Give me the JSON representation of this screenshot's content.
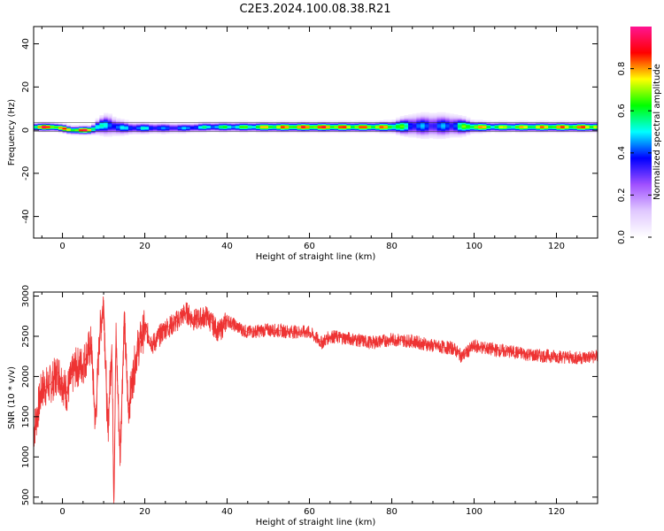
{
  "title": "C2E3.2024.100.08.38.R21",
  "chart_data": [
    {
      "type": "heatmap",
      "xlabel": "Height of straight line (km)",
      "ylabel": "Frequency (Hz)",
      "xlim": [
        -7,
        130
      ],
      "ylim": [
        -50,
        48
      ],
      "x_ticks": [
        0,
        20,
        40,
        60,
        80,
        100,
        120
      ],
      "y_ticks": [
        -40,
        -20,
        0,
        20,
        40
      ],
      "colorbar": {
        "label": "Normalized spectral amplitude",
        "range": [
          0,
          1
        ],
        "ticks": [
          0.0,
          0.2,
          0.4,
          0.6,
          0.8
        ],
        "colors": [
          "#ffffff",
          "#e0c8ff",
          "#a050ff",
          "#0000ff",
          "#00ffff",
          "#00ff00",
          "#ffff00",
          "#ff0000",
          "#ff1493"
        ]
      },
      "band": [
        {
          "x": -7,
          "y": 1.5,
          "amp": 0.8,
          "width": 3.0
        },
        {
          "x": -5,
          "y": 1.5,
          "amp": 1.0,
          "width": 3.0
        },
        {
          "x": -2,
          "y": 1.5,
          "amp": 0.95,
          "width": 3.0
        },
        {
          "x": 0,
          "y": 1.0,
          "amp": 0.9,
          "width": 3.0
        },
        {
          "x": 2,
          "y": 0.0,
          "amp": 0.85,
          "width": 3.0
        },
        {
          "x": 5,
          "y": 0.0,
          "amp": 1.0,
          "width": 3.0
        },
        {
          "x": 7,
          "y": 0.0,
          "amp": 0.9,
          "width": 3.0
        },
        {
          "x": 9,
          "y": 2.0,
          "amp": 0.6,
          "width": 6.0
        },
        {
          "x": 11,
          "y": 2.5,
          "amp": 0.5,
          "width": 8.0
        },
        {
          "x": 13,
          "y": 1.5,
          "amp": 0.55,
          "width": 6.0
        },
        {
          "x": 16,
          "y": 1.0,
          "amp": 0.5,
          "width": 4.5
        },
        {
          "x": 20,
          "y": 1.0,
          "amp": 0.55,
          "width": 4.0
        },
        {
          "x": 25,
          "y": 1.0,
          "amp": 0.45,
          "width": 4.0
        },
        {
          "x": 30,
          "y": 1.0,
          "amp": 0.5,
          "width": 3.5
        },
        {
          "x": 35,
          "y": 1.5,
          "amp": 0.6,
          "width": 3.5
        },
        {
          "x": 40,
          "y": 1.5,
          "amp": 0.65,
          "width": 3.5
        },
        {
          "x": 45,
          "y": 1.5,
          "amp": 0.7,
          "width": 3.5
        },
        {
          "x": 50,
          "y": 1.5,
          "amp": 0.85,
          "width": 3.5
        },
        {
          "x": 55,
          "y": 1.5,
          "amp": 0.9,
          "width": 3.5
        },
        {
          "x": 60,
          "y": 1.5,
          "amp": 0.95,
          "width": 3.5
        },
        {
          "x": 65,
          "y": 1.5,
          "amp": 0.95,
          "width": 3.5
        },
        {
          "x": 70,
          "y": 1.5,
          "amp": 0.9,
          "width": 3.5
        },
        {
          "x": 75,
          "y": 1.5,
          "amp": 0.9,
          "width": 3.5
        },
        {
          "x": 80,
          "y": 1.5,
          "amp": 0.85,
          "width": 4.0
        },
        {
          "x": 85,
          "y": 2.0,
          "amp": 0.5,
          "width": 8.0
        },
        {
          "x": 90,
          "y": 2.0,
          "amp": 0.45,
          "width": 9.0
        },
        {
          "x": 95,
          "y": 2.0,
          "amp": 0.5,
          "width": 8.0
        },
        {
          "x": 100,
          "y": 1.5,
          "amp": 0.9,
          "width": 4.0
        },
        {
          "x": 105,
          "y": 1.5,
          "amp": 0.75,
          "width": 3.5
        },
        {
          "x": 110,
          "y": 1.5,
          "amp": 0.8,
          "width": 3.5
        },
        {
          "x": 115,
          "y": 1.5,
          "amp": 0.85,
          "width": 3.5
        },
        {
          "x": 120,
          "y": 1.5,
          "amp": 0.9,
          "width": 3.5
        },
        {
          "x": 125,
          "y": 1.5,
          "amp": 0.9,
          "width": 3.5
        },
        {
          "x": 130,
          "y": 1.5,
          "amp": 0.95,
          "width": 3.5
        }
      ]
    },
    {
      "type": "line",
      "xlabel": "Height of straight line (km)",
      "ylabel": "SNR (10 * v/v)",
      "xlim": [
        -7,
        130
      ],
      "ylim": [
        420,
        3050
      ],
      "x_ticks": [
        0,
        20,
        40,
        60,
        80,
        100,
        120
      ],
      "y_ticks": [
        500,
        1000,
        1500,
        2000,
        2500,
        3000
      ],
      "line_color": "#ee3333",
      "series": [
        {
          "x": [
            -7,
            -5,
            -3,
            -1,
            1,
            3,
            5,
            7,
            8,
            9,
            10,
            11,
            12,
            12.5,
            13,
            14,
            15,
            16,
            18,
            20,
            22,
            25,
            27,
            30,
            32,
            35,
            38,
            40,
            43,
            45,
            50,
            55,
            60,
            63,
            65,
            70,
            75,
            80,
            85,
            90,
            95,
            97,
            100,
            105,
            110,
            115,
            120,
            125,
            130
          ],
          "y": [
            1300,
            1850,
            1900,
            2050,
            1800,
            2100,
            2150,
            2400,
            1400,
            2500,
            2950,
            1300,
            2400,
            450,
            2500,
            1000,
            2700,
            1600,
            2300,
            2600,
            2400,
            2600,
            2650,
            2800,
            2700,
            2750,
            2550,
            2700,
            2600,
            2550,
            2580,
            2560,
            2550,
            2420,
            2500,
            2470,
            2420,
            2460,
            2440,
            2380,
            2350,
            2250,
            2380,
            2330,
            2300,
            2260,
            2250,
            2230,
            2250
          ]
        }
      ]
    }
  ]
}
